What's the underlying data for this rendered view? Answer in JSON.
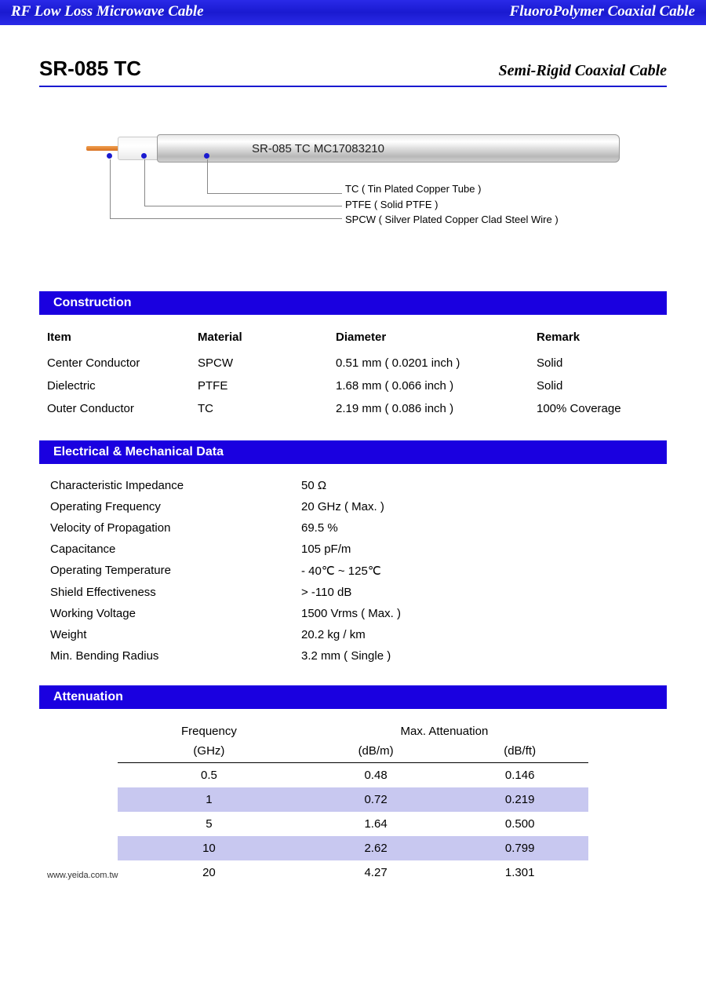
{
  "banner": {
    "left": "RF Low Loss Microwave Cable",
    "right": "FluoroPolymer Coaxial Cable"
  },
  "title": {
    "model": "SR-085 TC",
    "subtitle": "Semi-Rigid Coaxial Cable"
  },
  "diagram": {
    "cable_text": "SR-085 TC  MC17083210",
    "layers": [
      "TC ( Tin Plated  Copper Tube )",
      "PTFE ( Solid PTFE )",
      "SPCW ( Silver Plated Copper Clad Steel Wire )"
    ]
  },
  "sections": {
    "construction": "Construction",
    "electrical": "Electrical & Mechanical Data",
    "attenuation": "Attenuation"
  },
  "construction": {
    "headers": {
      "item": "Item",
      "material": "Material",
      "diameter": "Diameter",
      "remark": "Remark"
    },
    "rows": [
      {
        "item": "Center Conductor",
        "material": "SPCW",
        "diameter": "0.51 mm  ( 0.0201 inch )",
        "remark": "Solid"
      },
      {
        "item": "Dielectric",
        "material": "PTFE",
        "diameter": "1.68 mm  ( 0.066 inch )",
        "remark": "Solid"
      },
      {
        "item": "Outer Conductor",
        "material": "TC",
        "diameter": "2.19 mm  ( 0.086 inch )",
        "remark": "100% Coverage"
      }
    ]
  },
  "electrical": [
    {
      "k": "Characteristic Impedance",
      "v": "50 Ω"
    },
    {
      "k": "Operating Frequency",
      "v": "20 GHz ( Max. )"
    },
    {
      "k": "Velocity of Propagation",
      "v": "69.5 %"
    },
    {
      "k": "Capacitance",
      "v": "105 pF/m"
    },
    {
      "k": "Operating Temperature",
      "v": "- 40℃ ~ 125℃"
    },
    {
      "k": "Shield Effectiveness",
      "v": "> -110 dB"
    },
    {
      "k": "Working Voltage",
      "v": "1500 Vrms ( Max. )"
    },
    {
      "k": "Weight",
      "v": "20.2 kg / km"
    },
    {
      "k": "Min. Bending Radius",
      "v": "3.2 mm  ( Single )"
    }
  ],
  "attenuation": {
    "head": {
      "freq": "Frequency",
      "max": "Max. Attenuation",
      "ghz": "(GHz)",
      "dbm": "(dB/m)",
      "dbft": "(dB/ft)"
    },
    "rows": [
      {
        "f": "0.5",
        "m": "0.48",
        "ft": "0.146",
        "alt": false
      },
      {
        "f": "1",
        "m": "0.72",
        "ft": "0.219",
        "alt": true
      },
      {
        "f": "5",
        "m": "1.64",
        "ft": "0.500",
        "alt": false
      },
      {
        "f": "10",
        "m": "2.62",
        "ft": "0.799",
        "alt": true
      },
      {
        "f": "20",
        "m": "4.27",
        "ft": "1.301",
        "alt": false
      }
    ]
  },
  "footer": "www.yeida.com.tw",
  "colors": {
    "banner_bg": "#1a1ad0",
    "section_bg": "#1a00e0",
    "alt_row": "#c8c8f0"
  }
}
